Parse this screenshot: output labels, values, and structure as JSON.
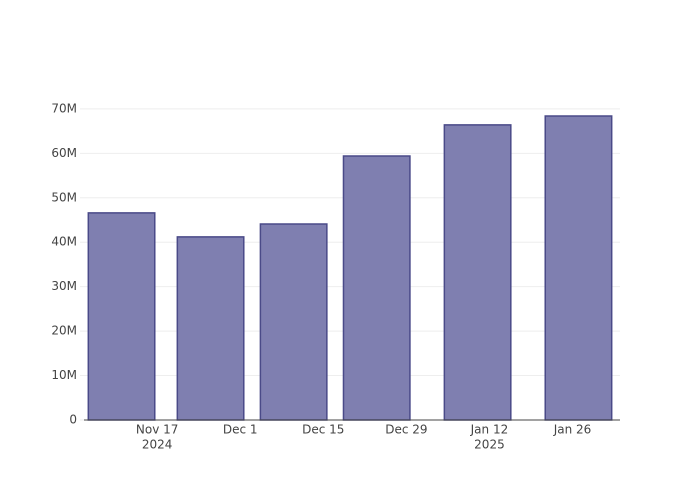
{
  "chart_data": {
    "type": "bar",
    "x": [
      "2024-11-11",
      "2024-11-26",
      "2024-12-10",
      "2024-12-24",
      "2025-01-10",
      "2025-01-27"
    ],
    "values": [
      46600000,
      41200000,
      44100000,
      59400000,
      66400000,
      68400000
    ],
    "color": "#7f7fb0",
    "edge_color": "#4a4a88",
    "xlim": [
      "2024-11-04",
      "2025-02-03"
    ],
    "xticks": [
      {
        "value": "2024-11-17",
        "label": "Nov 17",
        "year": "2024"
      },
      {
        "value": "2024-12-01",
        "label": "Dec 1"
      },
      {
        "value": "2024-12-15",
        "label": "Dec 15"
      },
      {
        "value": "2024-12-29",
        "label": "Dec 29"
      },
      {
        "value": "2025-01-12",
        "label": "Jan 12",
        "year": "2025"
      },
      {
        "value": "2025-01-26",
        "label": "Jan 26"
      }
    ],
    "ylim": [
      0,
      72000000
    ],
    "yticks": [
      0,
      {
        "value": 10000000,
        "label": "10M"
      },
      {
        "value": 20000000,
        "label": "20M"
      },
      {
        "value": 30000000,
        "label": "30M"
      },
      {
        "value": 40000000,
        "label": "40M"
      },
      {
        "value": 50000000,
        "label": "50M"
      },
      {
        "value": 60000000,
        "label": "60M"
      },
      {
        "value": 70000000,
        "label": "70M"
      }
    ],
    "grid": true
  }
}
